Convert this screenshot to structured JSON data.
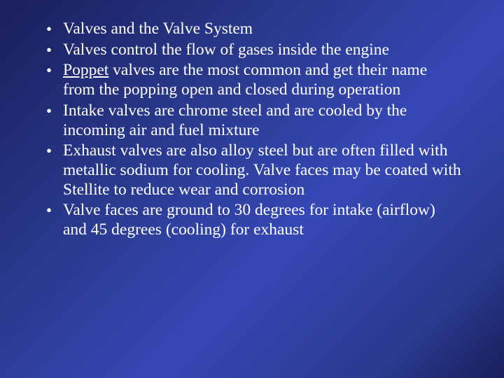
{
  "slide": {
    "background_gradient": {
      "angle": 135,
      "stops": [
        "#1a1f5c",
        "#2a3a8f",
        "#3548b5",
        "#2a3a8f",
        "#1a1f5c"
      ]
    },
    "text_color": "#ffffff",
    "font_family": "Times New Roman",
    "font_size_pt": 18,
    "bullets": [
      {
        "text": "Valves and the Valve System"
      },
      {
        "text": "Valves control the flow of gases inside the engine"
      },
      {
        "underlined_prefix": "Poppet",
        "rest": " valves are the most common and get their name from the popping open and closed during operation"
      },
      {
        "text": "Intake valves are chrome steel and are cooled by the incoming air and fuel mixture"
      },
      {
        "text": "Exhaust valves are also alloy steel but are often filled with metallic sodium for cooling.  Valve faces may  be coated with Stellite to reduce wear and corrosion"
      },
      {
        "text": "Valve faces are ground to 30 degrees for intake (airflow) and 45 degrees (cooling) for exhaust"
      }
    ]
  }
}
